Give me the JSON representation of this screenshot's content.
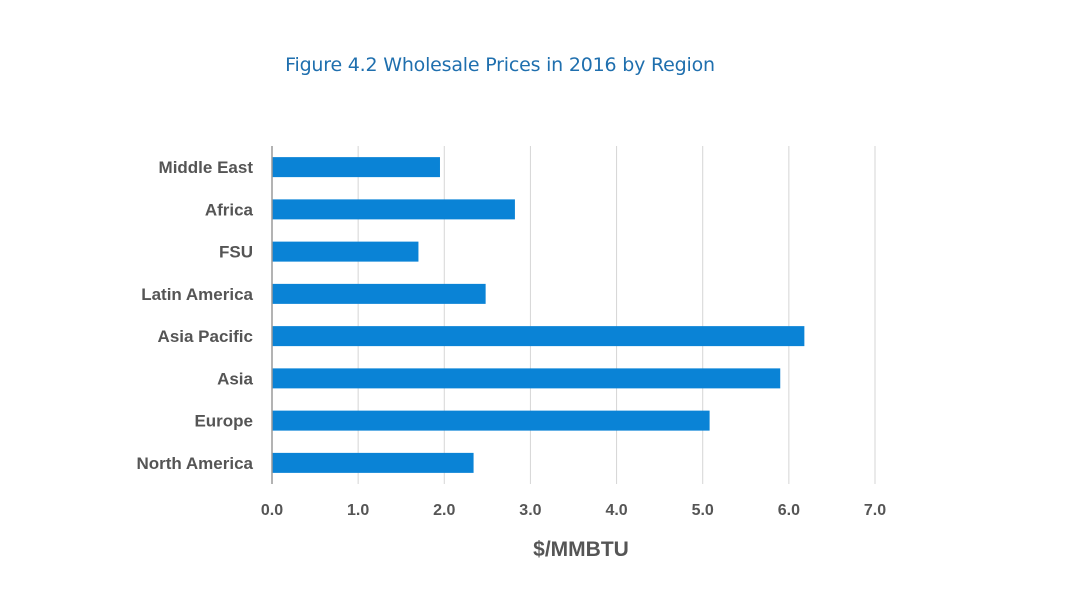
{
  "chart_data": {
    "type": "bar",
    "orientation": "horizontal",
    "title": "Figure 4.2 Wholesale Prices in 2016 by Region",
    "categories": [
      "Middle East",
      "Africa",
      "FSU",
      "Latin America",
      "Asia Pacific",
      "Asia",
      "Europe",
      "North America"
    ],
    "values": [
      1.95,
      2.82,
      1.7,
      2.48,
      6.18,
      5.9,
      5.08,
      2.34
    ],
    "xlabel": "$/MMBTU",
    "ylabel": "",
    "xlim": [
      0,
      7
    ],
    "xticks": [
      "0.0",
      "1.0",
      "2.0",
      "3.0",
      "4.0",
      "5.0",
      "6.0",
      "7.0"
    ],
    "grid": "vertical",
    "bar_color": "#0a83d6"
  }
}
